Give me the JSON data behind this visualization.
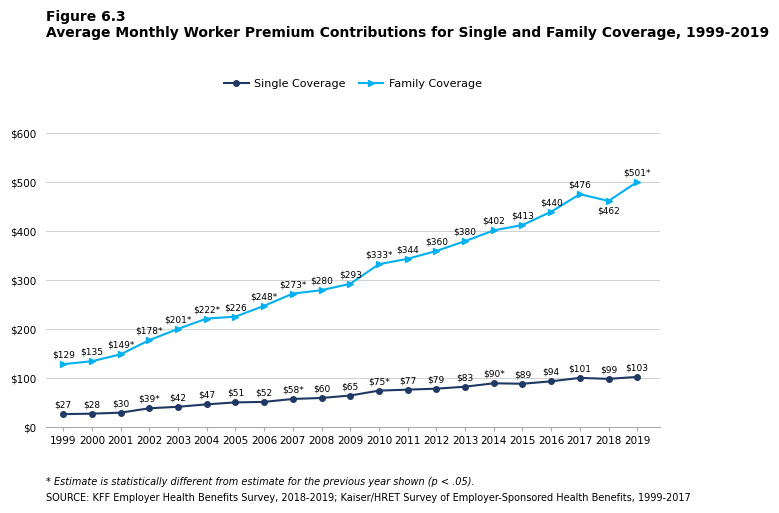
{
  "years": [
    1999,
    2000,
    2001,
    2002,
    2003,
    2004,
    2005,
    2006,
    2007,
    2008,
    2009,
    2010,
    2011,
    2012,
    2013,
    2014,
    2015,
    2016,
    2017,
    2018,
    2019
  ],
  "single": [
    27,
    28,
    30,
    39,
    42,
    47,
    51,
    52,
    58,
    60,
    65,
    75,
    77,
    79,
    83,
    90,
    89,
    94,
    101,
    99,
    103
  ],
  "family": [
    129,
    135,
    149,
    178,
    201,
    222,
    226,
    248,
    273,
    280,
    293,
    333,
    344,
    360,
    380,
    402,
    413,
    440,
    476,
    462,
    501
  ],
  "single_star": [
    false,
    false,
    false,
    true,
    false,
    false,
    false,
    false,
    true,
    false,
    false,
    true,
    false,
    false,
    false,
    true,
    false,
    false,
    false,
    false,
    false
  ],
  "family_star": [
    false,
    false,
    true,
    true,
    true,
    true,
    false,
    true,
    true,
    false,
    false,
    true,
    false,
    false,
    false,
    false,
    false,
    false,
    false,
    false,
    true
  ],
  "single_color": "#1f3864",
  "family_color": "#00b0f0",
  "title_line1": "Figure 6.3",
  "title_line2": "Average Monthly Worker Premium Contributions for Single and Family Coverage, 1999-2019",
  "legend_single": "Single Coverage",
  "legend_family": "Family Coverage",
  "footnote1": "* Estimate is statistically different from estimate for the previous year shown (p < .05).",
  "footnote2": "SOURCE: KFF Employer Health Benefits Survey, 2018-2019; Kaiser/HRET Survey of Employer-Sponsored Health Benefits, 1999-2017",
  "ylim": [
    0,
    600
  ],
  "yticks": [
    0,
    100,
    200,
    300,
    400,
    500,
    600
  ],
  "ytick_labels": [
    "$0",
    "$100",
    "$200",
    "$300",
    "$400",
    "$500",
    "$600"
  ],
  "annotation_fontsize": 6.5,
  "tick_fontsize": 7.5
}
